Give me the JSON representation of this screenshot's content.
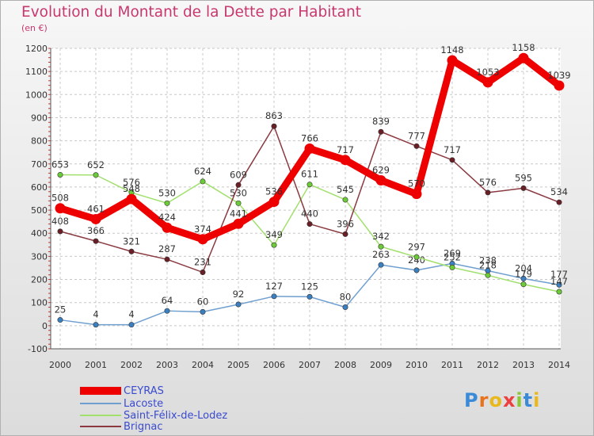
{
  "header": {
    "title": "Evolution du Montant de la Dette par Habitant",
    "subtitle": "(en €)"
  },
  "branding": {
    "logo_text": "Proxiti",
    "logo_letter_colors": [
      "#3a8ad8",
      "#e8731c",
      "#e8b81c",
      "#ec4040",
      "#8ac838",
      "#3a8ad8",
      "#e8b81c"
    ]
  },
  "chart_data": {
    "type": "line",
    "title": "Evolution du Montant de la Dette par Habitant",
    "subtitle": "(en €)",
    "x": [
      "2000",
      "2001",
      "2002",
      "2003",
      "2004",
      "2005",
      "2006",
      "2007",
      "2008",
      "2009",
      "2010",
      "2011",
      "2012",
      "2013",
      "2014"
    ],
    "ylim": [
      -100,
      1200
    ],
    "yticks": [
      -100,
      0,
      100,
      200,
      300,
      400,
      500,
      600,
      700,
      800,
      900,
      1000,
      1100,
      1200
    ],
    "grid": true,
    "legend_position": "bottom-left",
    "series": [
      {
        "name": "CEYRAS",
        "color": "#ee0000",
        "marker_color": "#ee0000",
        "emphasis": true,
        "values": [
          508,
          461,
          548,
          424,
          374,
          441,
          536,
          766,
          717,
          629,
          570,
          1148,
          1053,
          1158,
          1039
        ]
      },
      {
        "name": "Lacoste",
        "color": "#6f9fcf",
        "marker_color": "#3a7fc0",
        "values": [
          25,
          4,
          4,
          64,
          60,
          92,
          127,
          125,
          80,
          263,
          240,
          269,
          238,
          204,
          177
        ]
      },
      {
        "name": "Saint-Félix-de-Lodez",
        "color": "#a2e06e",
        "marker_color": "#6ccc38",
        "values": [
          653,
          652,
          576,
          530,
          624,
          530,
          349,
          611,
          545,
          342,
          297,
          252,
          218,
          179,
          147
        ]
      },
      {
        "name": "Brignac",
        "color": "#8a3a40",
        "marker_color": "#6a1e26",
        "values": [
          408,
          366,
          321,
          287,
          231,
          609,
          863,
          440,
          396,
          839,
          777,
          717,
          576,
          595,
          534
        ]
      }
    ]
  }
}
